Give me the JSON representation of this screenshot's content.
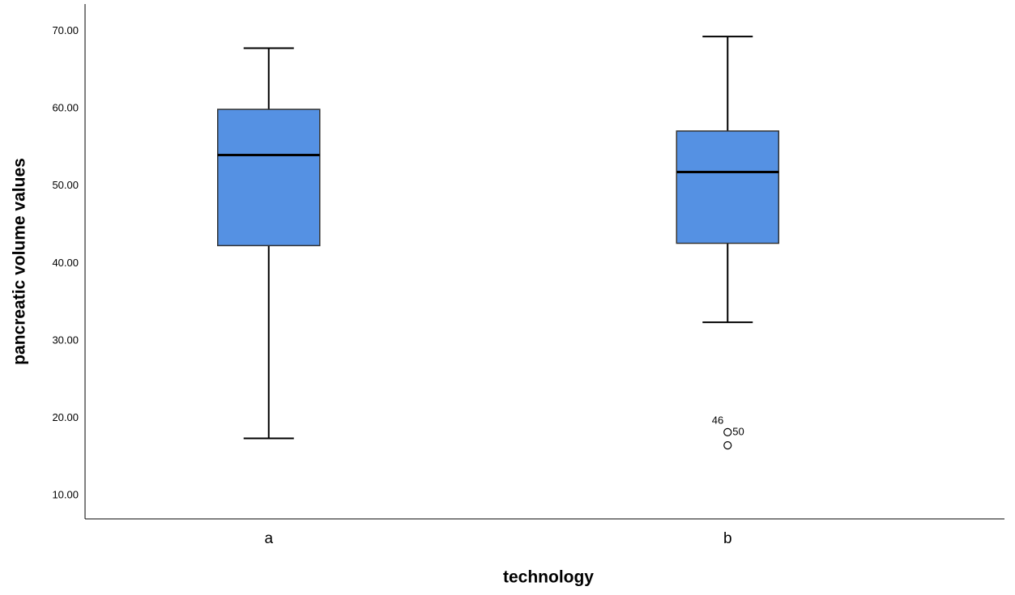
{
  "chart_data": {
    "type": "box",
    "x_label": "technology",
    "y_label": "pancreatic volume values",
    "categories": [
      "a",
      "b"
    ],
    "color": "#5591e3",
    "boxes": [
      {
        "whislo": 17.4,
        "q1": 42.3,
        "med": 54.0,
        "q3": 59.9,
        "whishi": 67.8,
        "fliers": []
      },
      {
        "whislo": 32.4,
        "q1": 42.6,
        "med": 51.8,
        "q3": 57.1,
        "whishi": 69.3,
        "fliers": [
          {
            "value": 18.2,
            "label": "50"
          },
          {
            "value": 16.5,
            "label": "46"
          }
        ]
      }
    ],
    "ylim": [
      7.0,
      73.5
    ],
    "yticks": [
      {
        "value": 10,
        "label": "10.00"
      },
      {
        "value": 20,
        "label": "20.00"
      },
      {
        "value": 30,
        "label": "30.00"
      },
      {
        "value": 40,
        "label": "40.00"
      },
      {
        "value": 50,
        "label": "50.00"
      },
      {
        "value": 60,
        "label": "60.00"
      },
      {
        "value": 70,
        "label": "70.00"
      }
    ],
    "grid": false
  }
}
